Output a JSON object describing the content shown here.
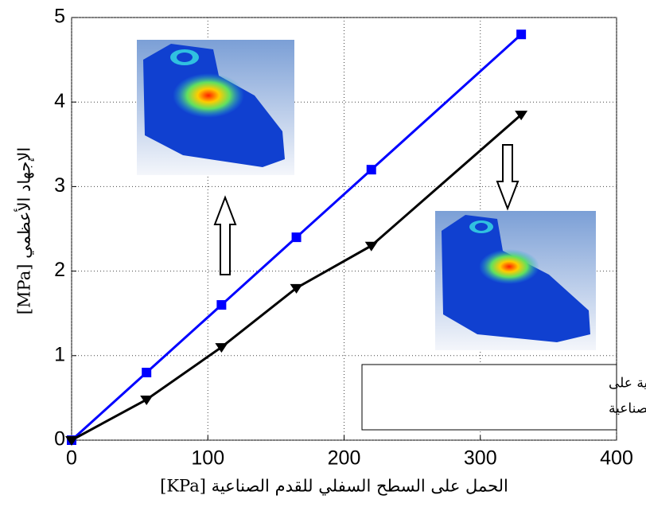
{
  "chart_data": {
    "type": "line",
    "x_label": "الحمل على السطح السفلي للقدم الصناعية [KPa]",
    "y_label": "الإجهاد الأعظمي [MPa]",
    "annotation": [
      "تأثير التعديلات الطبولوجية على",
      "الإجهاد الأعظمي في القدم الصناعية"
    ],
    "x": [
      0,
      55,
      110,
      165,
      220,
      330
    ],
    "series": [
      {
        "name": null,
        "color": "#0000ff",
        "marker": "square",
        "values": [
          0,
          0.8,
          1.6,
          2.4,
          3.2,
          4.8
        ]
      },
      {
        "name": null,
        "color": "#000000",
        "marker": "triangle",
        "values": [
          0,
          0.48,
          1.1,
          1.8,
          2.3,
          3.85
        ]
      }
    ],
    "xlim": [
      0,
      400
    ],
    "xticks": [
      0,
      100,
      200,
      300,
      400
    ],
    "ylim": [
      0,
      5
    ],
    "yticks": [
      0,
      1,
      2,
      3,
      4,
      5
    ],
    "grid": true
  }
}
